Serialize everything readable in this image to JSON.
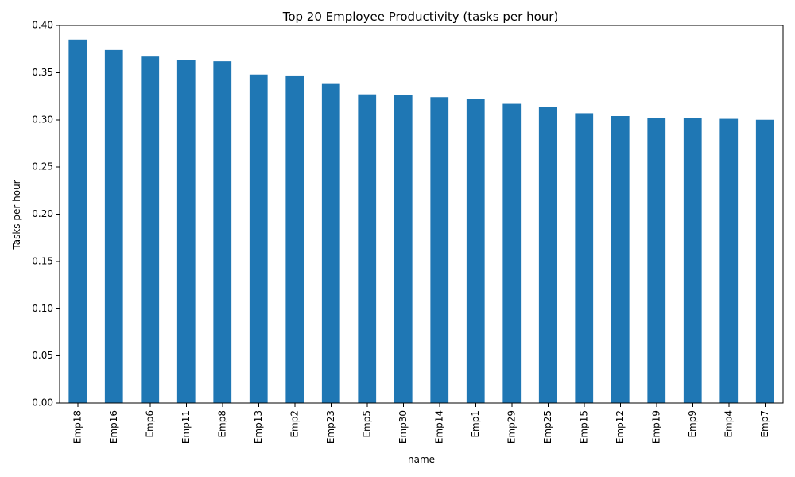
{
  "chart_data": {
    "type": "bar",
    "title": "Top 20 Employee Productivity (tasks per hour)",
    "xlabel": "name",
    "ylabel": "Tasks per hour",
    "categories": [
      "Emp18",
      "Emp16",
      "Emp6",
      "Emp11",
      "Emp8",
      "Emp13",
      "Emp2",
      "Emp23",
      "Emp5",
      "Emp30",
      "Emp14",
      "Emp1",
      "Emp29",
      "Emp25",
      "Emp15",
      "Emp12",
      "Emp19",
      "Emp9",
      "Emp4",
      "Emp7"
    ],
    "values": [
      0.385,
      0.374,
      0.367,
      0.363,
      0.362,
      0.348,
      0.347,
      0.338,
      0.327,
      0.326,
      0.324,
      0.322,
      0.317,
      0.314,
      0.307,
      0.304,
      0.302,
      0.302,
      0.301,
      0.3
    ],
    "ylim": [
      0,
      0.4
    ],
    "yticks": [
      "0.00",
      "0.05",
      "0.10",
      "0.15",
      "0.20",
      "0.25",
      "0.30",
      "0.35",
      "0.40"
    ],
    "ytick_values": [
      0,
      0.05,
      0.1,
      0.15,
      0.2,
      0.25,
      0.3,
      0.35,
      0.4
    ],
    "bar_color": "#1f77b4",
    "grid": false,
    "legend": "none"
  }
}
